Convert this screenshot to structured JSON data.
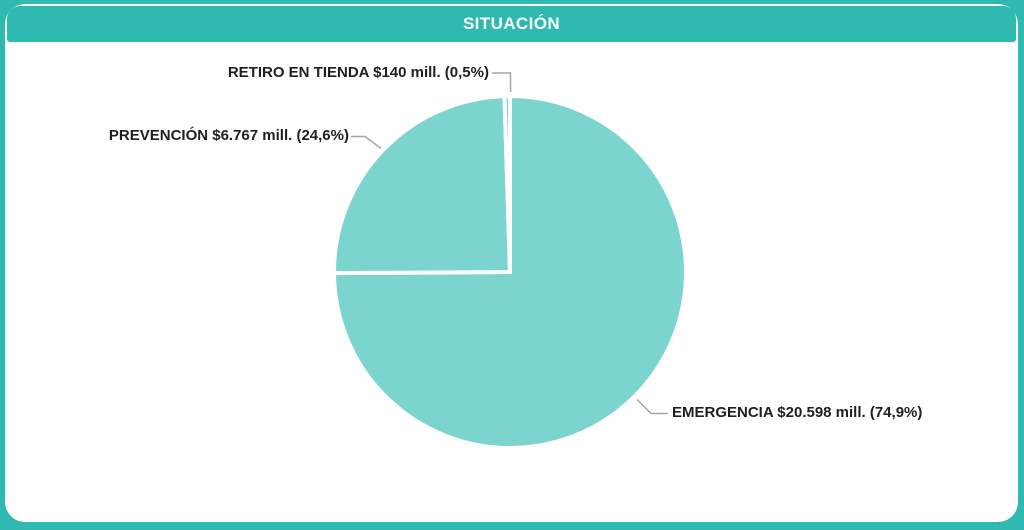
{
  "header": {
    "title": "SITUACIÓN"
  },
  "colors": {
    "frame_teal": "#2EBAB0",
    "card_background": "#FFFFFF",
    "title_text": "#FFFFFF",
    "label_text": "#1F1F1F"
  },
  "chart_data": {
    "type": "pie",
    "title": "SITUACIÓN",
    "legend": "none",
    "start_angle_deg": 0,
    "direction": "clockwise",
    "slices": [
      {
        "id": "emergencia",
        "name": "EMERGENCIA",
        "amount_label": "$20.598 mill.",
        "value_millions": 20598,
        "percent": 74.9,
        "label_full": "EMERGENCIA $20.598 mill. (74,9%)"
      },
      {
        "id": "prevencion",
        "name": "PREVENCIÓN",
        "amount_label": "$6.767 mill.",
        "value_millions": 6767,
        "percent": 24.6,
        "label_full": "PREVENCIÓN $6.767 mill. (24,6%)"
      },
      {
        "id": "retiro-en-tienda",
        "name": "RETIRO EN TIENDA",
        "amount_label": "$140 mill.",
        "value_millions": 140,
        "percent": 0.5,
        "label_full": "RETIRO EN TIENDA $140 mill. (0,5%)"
      }
    ],
    "colors": {
      "slice_fill": "#7CD4CE",
      "slice_stroke": "#FFFFFF",
      "leader_line": "#A6A6A6"
    }
  }
}
